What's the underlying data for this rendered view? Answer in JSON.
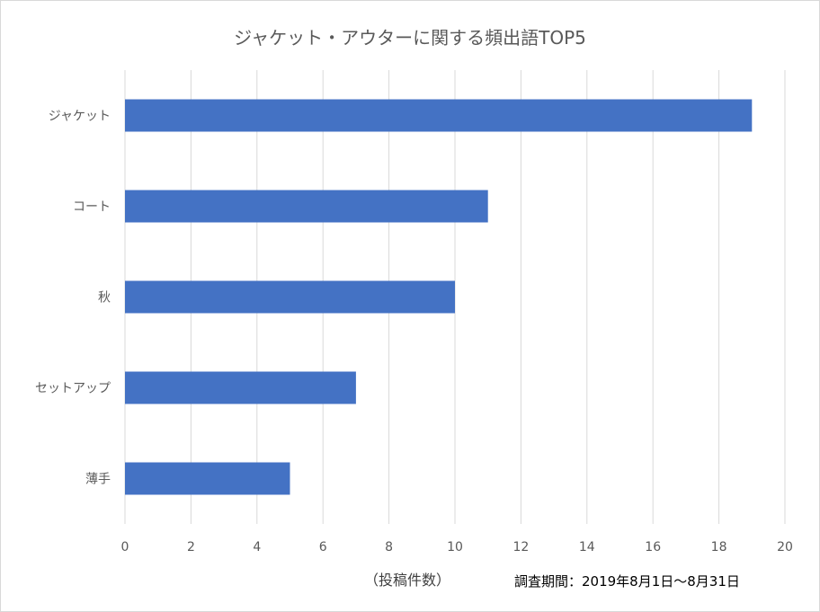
{
  "chart_data": {
    "type": "bar",
    "orientation": "horizontal",
    "title": "ジャケット・アウターに関する頻出語TOP5",
    "xlabel": "（投稿件数）",
    "ylabel": "",
    "categories": [
      "ジャケット",
      "コート",
      "秋",
      "セットアップ",
      "薄手"
    ],
    "values": [
      19,
      11,
      10,
      7,
      5
    ],
    "xlim": [
      0,
      20
    ],
    "xticks": [
      "0",
      "2",
      "4",
      "6",
      "8",
      "10",
      "12",
      "14",
      "16",
      "18",
      "20"
    ],
    "grid": true,
    "legend": "none",
    "bar_color": "#4472c4",
    "grid_color": "#d9d9d9",
    "annotation": "調査期間：2019年8月1日〜8月31日"
  }
}
